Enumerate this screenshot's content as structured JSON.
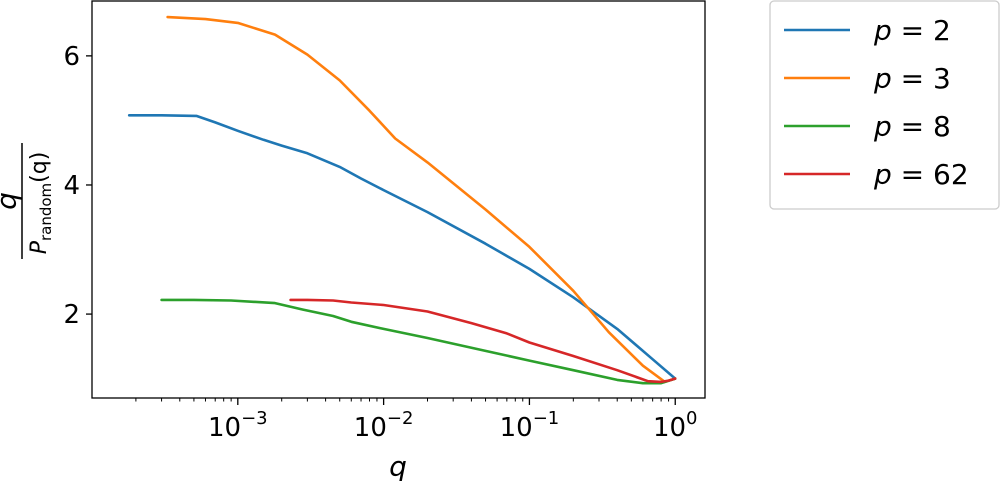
{
  "chart_data": {
    "type": "line",
    "xlabel": "q",
    "ylabel_html": "q / P_random(q)",
    "ylabel": {
      "numerator": "q",
      "denominator_main": "P",
      "denominator_sub": "random",
      "denominator_arg": "(q)"
    },
    "x_scale": "log",
    "xlim": [
      0.0001,
      1.6
    ],
    "ylim": [
      0.7,
      6.85
    ],
    "x_ticks": [
      {
        "value": 0.001,
        "base": "10",
        "exp": "−3"
      },
      {
        "value": 0.01,
        "base": "10",
        "exp": "−2"
      },
      {
        "value": 0.1,
        "base": "10",
        "exp": "−1"
      },
      {
        "value": 1,
        "base": "10",
        "exp": "0"
      }
    ],
    "y_ticks": [
      {
        "value": 2,
        "label": "2"
      },
      {
        "value": 4,
        "label": "4"
      },
      {
        "value": 6,
        "label": "6"
      }
    ],
    "grid": false,
    "legend_position": "outside-right",
    "series": [
      {
        "name": "p = 2",
        "legend": {
          "var": "p",
          "eq": " = ",
          "val": "2"
        },
        "color": "#1f77b4",
        "x": [
          0.00018,
          0.0003,
          0.00052,
          0.0007,
          0.001,
          0.0015,
          0.002,
          0.003,
          0.005,
          0.007,
          0.01,
          0.02,
          0.05,
          0.1,
          0.2,
          0.4,
          0.7,
          1.0
        ],
        "y": [
          5.08,
          5.08,
          5.07,
          4.97,
          4.84,
          4.7,
          4.61,
          4.49,
          4.28,
          4.1,
          3.92,
          3.58,
          3.09,
          2.7,
          2.26,
          1.77,
          1.3,
          1.0
        ]
      },
      {
        "name": "p = 3",
        "legend": {
          "var": "p",
          "eq": " = ",
          "val": "3"
        },
        "color": "#ff7f0e",
        "x": [
          0.00033,
          0.0006,
          0.001,
          0.0018,
          0.003,
          0.005,
          0.008,
          0.012,
          0.02,
          0.05,
          0.1,
          0.2,
          0.35,
          0.6,
          0.85,
          1.0
        ],
        "y": [
          6.6,
          6.57,
          6.51,
          6.33,
          6.02,
          5.62,
          5.15,
          4.72,
          4.35,
          3.62,
          3.04,
          2.36,
          1.72,
          1.2,
          0.95,
          1.0
        ]
      },
      {
        "name": "p = 8",
        "legend": {
          "var": "p",
          "eq": " = ",
          "val": "8"
        },
        "color": "#2ca02c",
        "x": [
          0.0003,
          0.0005,
          0.0009,
          0.0018,
          0.0028,
          0.0045,
          0.006,
          0.01,
          0.02,
          0.05,
          0.1,
          0.2,
          0.4,
          0.6,
          0.8,
          1.0
        ],
        "y": [
          2.22,
          2.22,
          2.21,
          2.17,
          2.07,
          1.97,
          1.88,
          1.77,
          1.63,
          1.43,
          1.28,
          1.13,
          0.98,
          0.93,
          0.93,
          1.0
        ]
      },
      {
        "name": "p = 62",
        "legend": {
          "var": "p",
          "eq": " = ",
          "val": "62"
        },
        "color": "#d62728",
        "x": [
          0.0023,
          0.003,
          0.0045,
          0.006,
          0.01,
          0.02,
          0.04,
          0.07,
          0.1,
          0.2,
          0.4,
          0.65,
          0.8,
          0.9,
          1.0
        ],
        "y": [
          2.22,
          2.22,
          2.21,
          2.18,
          2.14,
          2.04,
          1.86,
          1.7,
          1.56,
          1.35,
          1.13,
          0.96,
          0.95,
          0.97,
          1.0
        ]
      }
    ]
  }
}
